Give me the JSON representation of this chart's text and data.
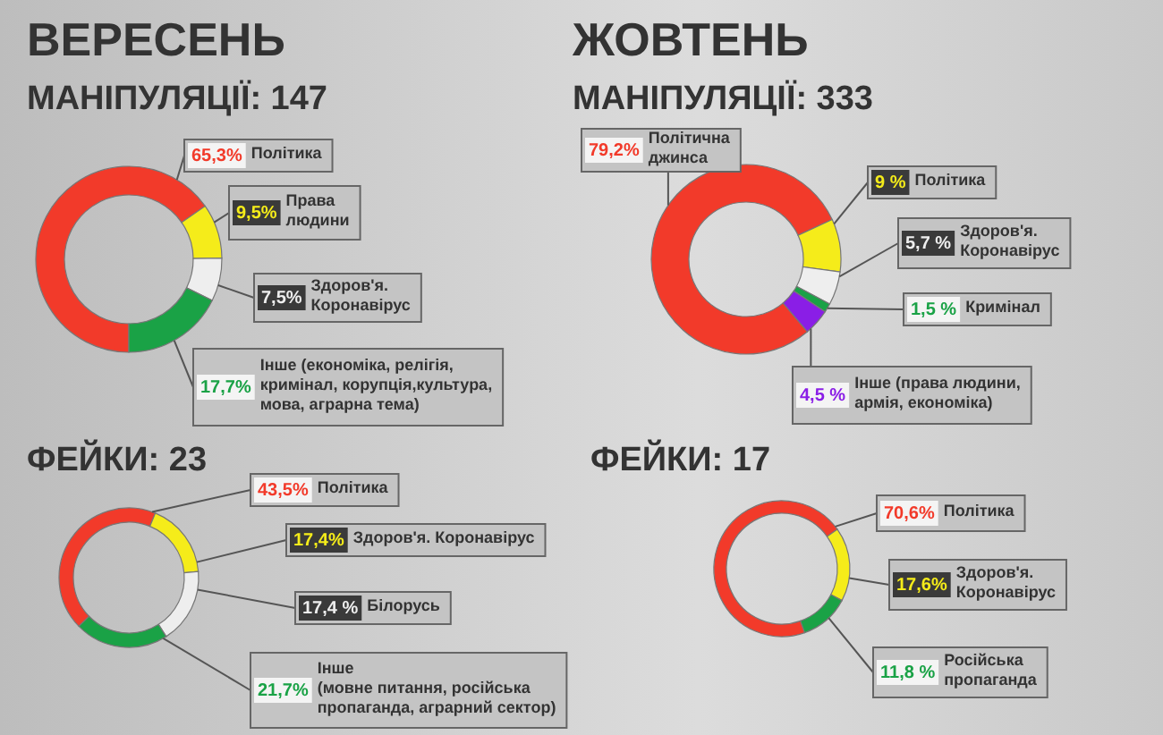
{
  "chart_data": [
    {
      "type": "donut",
      "subtitle": "ВЕРЕСЕНЬ",
      "title": "МАНІПУЛЯЦІЇ: 147",
      "categories": [
        "Політика",
        "Права\nлюдини",
        "Здоров'я.\nКоронавірус",
        "Інше (економіка, релігія,\nкримінал, корупція,культура,\nмова, аграрна тема)"
      ],
      "values": [
        65.3,
        9.5,
        7.5,
        17.7
      ],
      "value_labels": [
        "65,3%",
        "9,5%",
        "7,5%",
        "17,7%"
      ],
      "colors": [
        "#f23a2a",
        "#f5ec1a",
        "#eeeeee",
        "#1aa246"
      ]
    },
    {
      "type": "donut",
      "subtitle": "ЖОВТЕНЬ",
      "title": "МАНІПУЛЯЦІЇ: 333",
      "categories": [
        "Політична\nджинса",
        "Політика",
        "Здоров'я.\nКоронавірус",
        "Кримінал",
        "Інше (права людини,\nармія, економіка)"
      ],
      "values": [
        79.2,
        9,
        5.7,
        1.5,
        4.5
      ],
      "value_labels": [
        "79,2%",
        "9 %",
        "5,7 %",
        "1,5 %",
        "4,5 %"
      ],
      "colors": [
        "#f23a2a",
        "#f5ec1a",
        "#eeeeee",
        "#1aa246",
        "#8a1ee6"
      ]
    },
    {
      "type": "donut",
      "title": "ФЕЙКИ: 23",
      "categories": [
        "Політика",
        "Здоров'я. Коронавірус",
        "Білорусь",
        "Інше\n(мовне питання, російська\nпропаганда, аграрний сектор)"
      ],
      "values": [
        43.5,
        17.4,
        17.4,
        21.7
      ],
      "value_labels": [
        "43,5%",
        "17,4%",
        "17,4 %",
        "21,7%"
      ],
      "colors": [
        "#f23a2a",
        "#f5ec1a",
        "#eeeeee",
        "#1aa246"
      ]
    },
    {
      "type": "donut",
      "title": "ФЕЙКИ: 17",
      "categories": [
        "Політика",
        "Здоров'я.\nКоронавірус",
        "Російська\nпропаганда"
      ],
      "values": [
        70.6,
        17.6,
        11.8
      ],
      "value_labels": [
        "70,6%",
        "17,6%",
        "11,8 %"
      ],
      "colors": [
        "#f23a2a",
        "#f5ec1a",
        "#1aa246"
      ]
    }
  ]
}
